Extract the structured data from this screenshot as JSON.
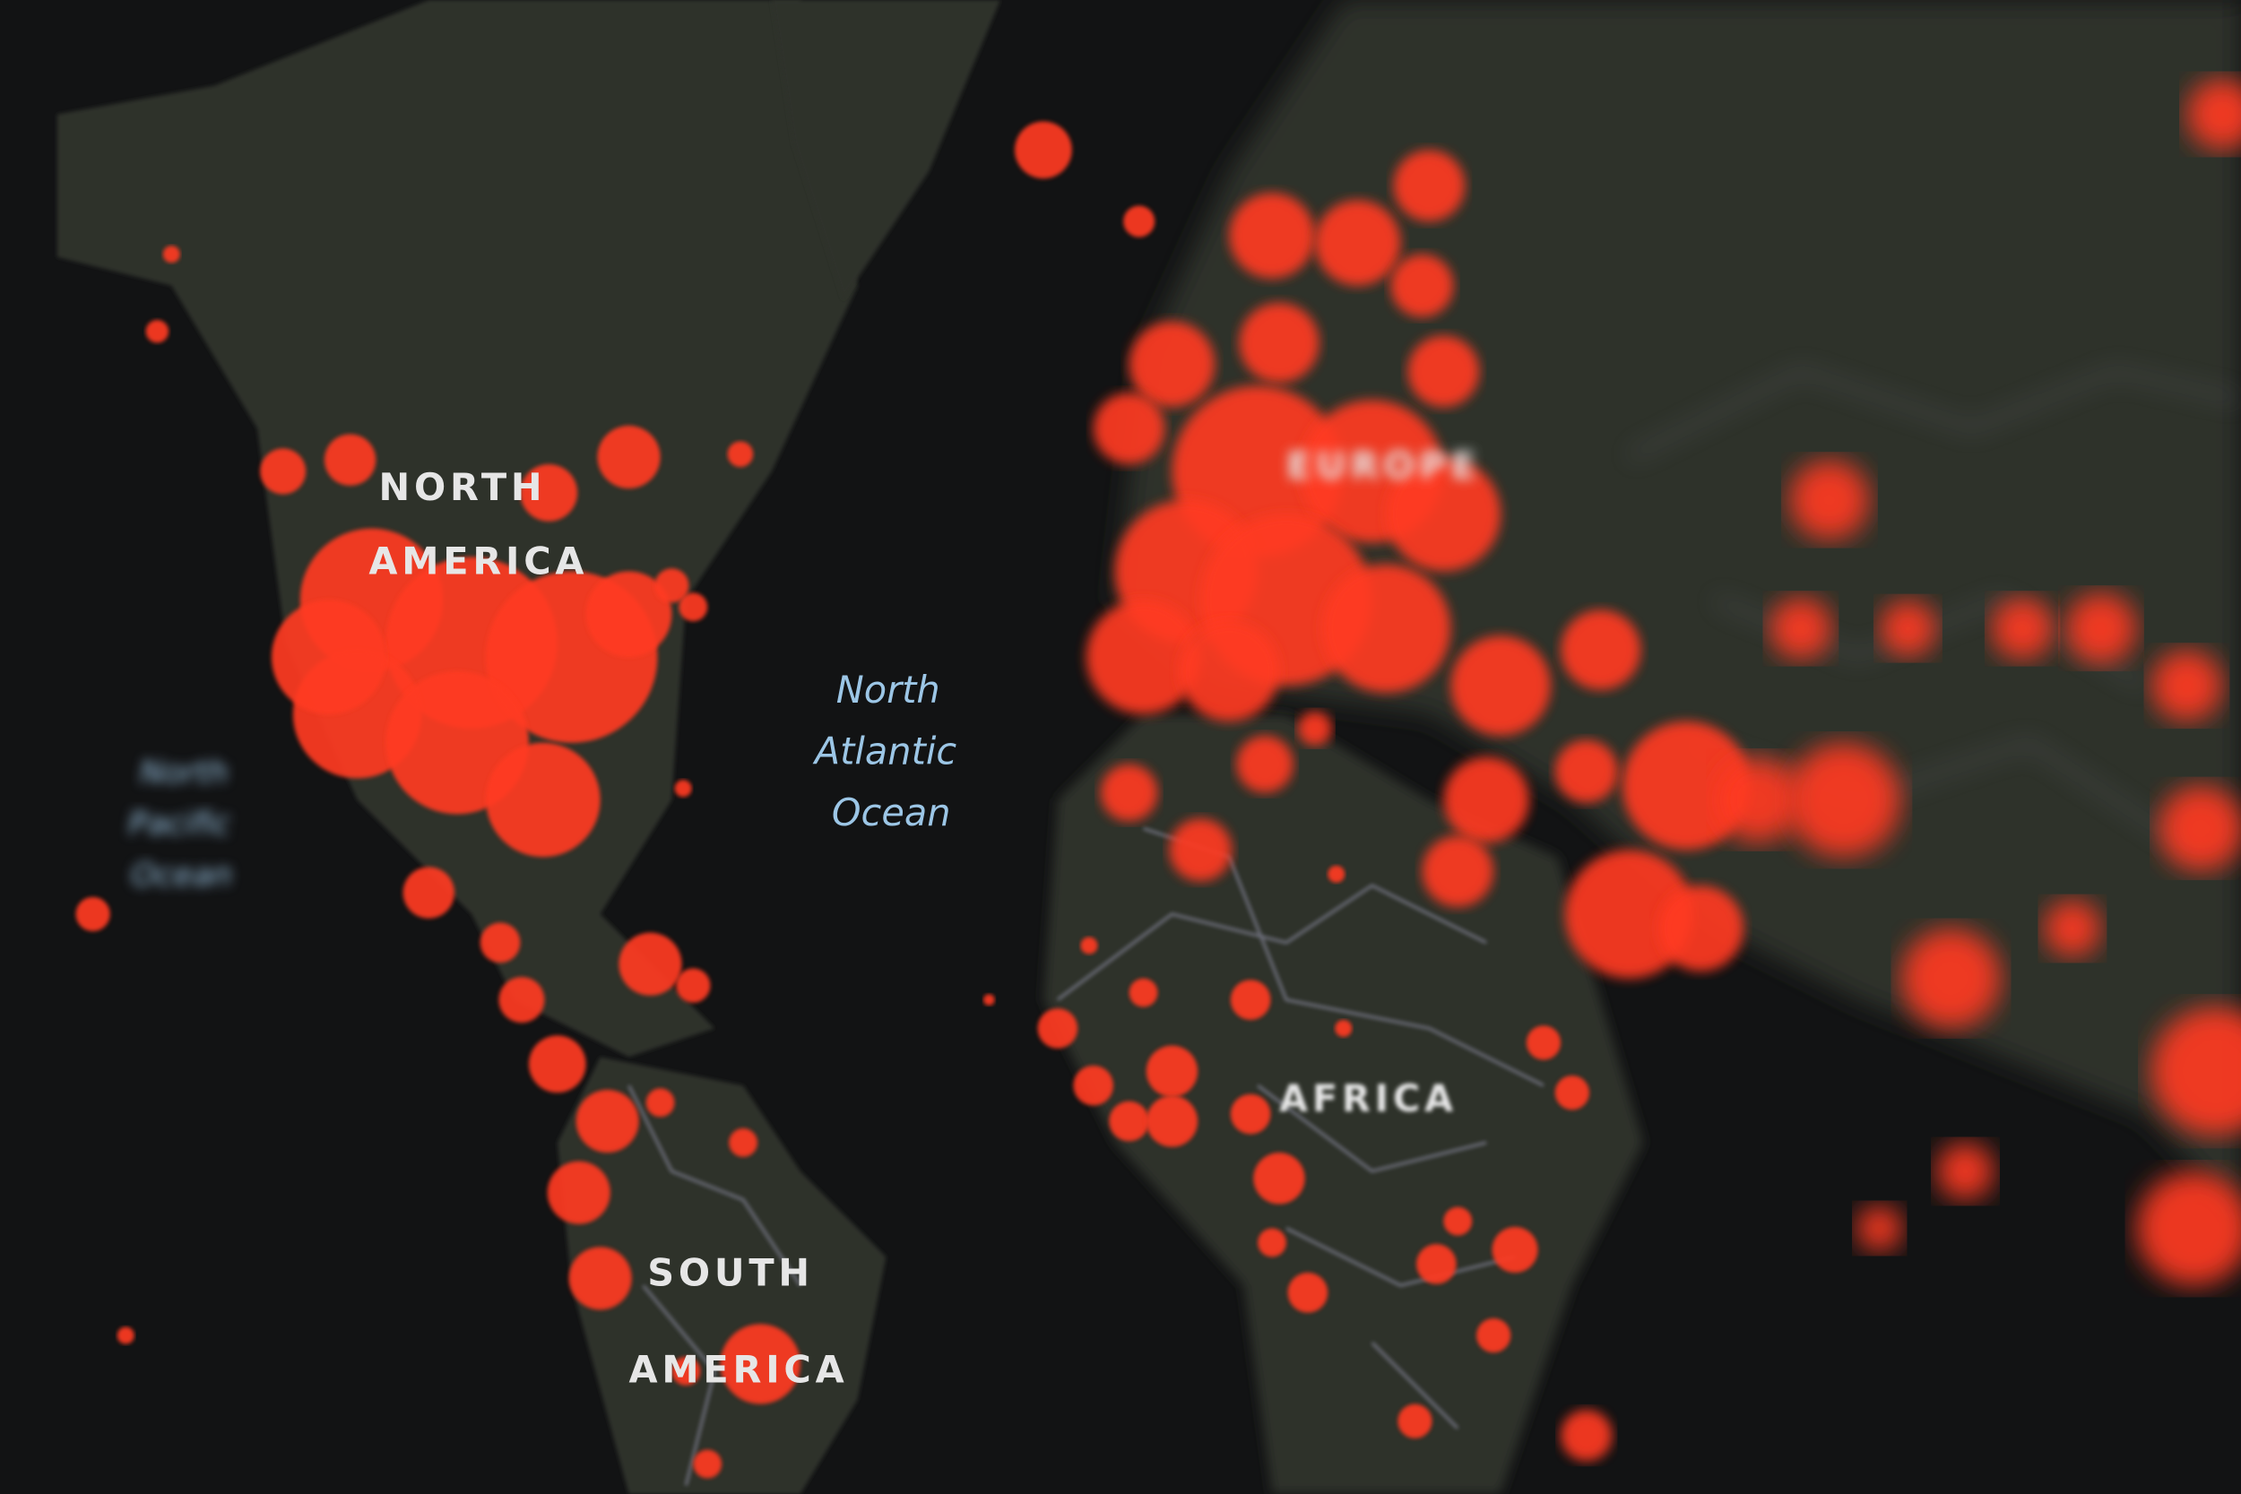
{
  "map": {
    "colors": {
      "background": "#121314",
      "land": "#2f302c",
      "borders": "#8f8fa6",
      "hotspot": "#ff3b22",
      "continent_label": "#e6e6e6",
      "ocean_label": "#9cc6e6"
    },
    "labels": {
      "north_america": [
        "NORTH",
        "AMERICA"
      ],
      "south_america": [
        "SOUTH",
        "AMERICA"
      ],
      "europe": "EUROPE",
      "africa": "AFRICA",
      "north_atlantic": [
        "North",
        "Atlantic",
        "Ocean"
      ],
      "north_pacific": [
        "North",
        "Pacific",
        "Ocean"
      ]
    }
  }
}
